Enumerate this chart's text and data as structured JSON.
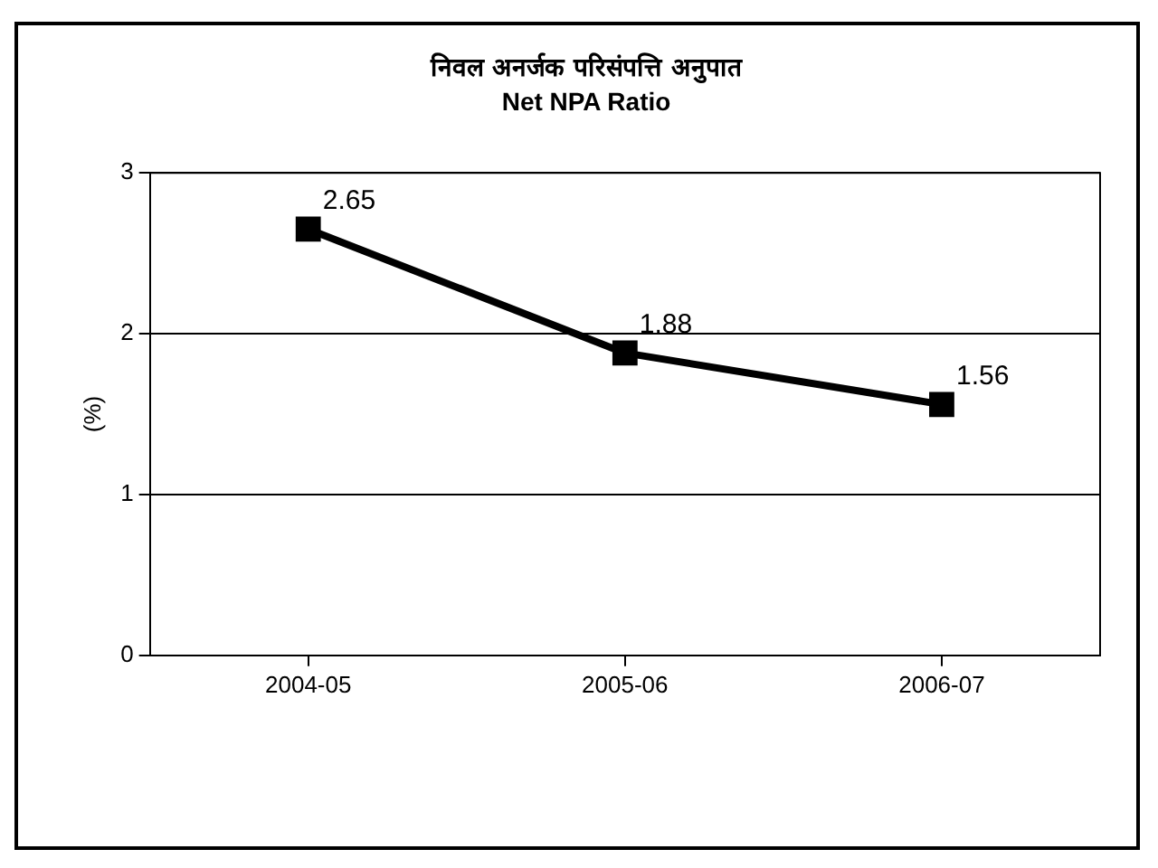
{
  "chart_data": {
    "type": "line",
    "title": "निवल अनर्जक परिसंपत्ति अनुपात",
    "subtitle": "Net NPA Ratio",
    "ylabel": "(%)",
    "categories": [
      "2004-05",
      "2005-06",
      "2006-07"
    ],
    "series": [
      {
        "color": "#000000",
        "values": [
          2.65,
          1.88,
          1.56
        ]
      }
    ],
    "ylim": [
      0,
      3
    ],
    "yticks": [
      0,
      1,
      2,
      3
    ],
    "grid": "y",
    "legend": false,
    "marker": "square",
    "line_style": "solid",
    "data_labels": true
  }
}
